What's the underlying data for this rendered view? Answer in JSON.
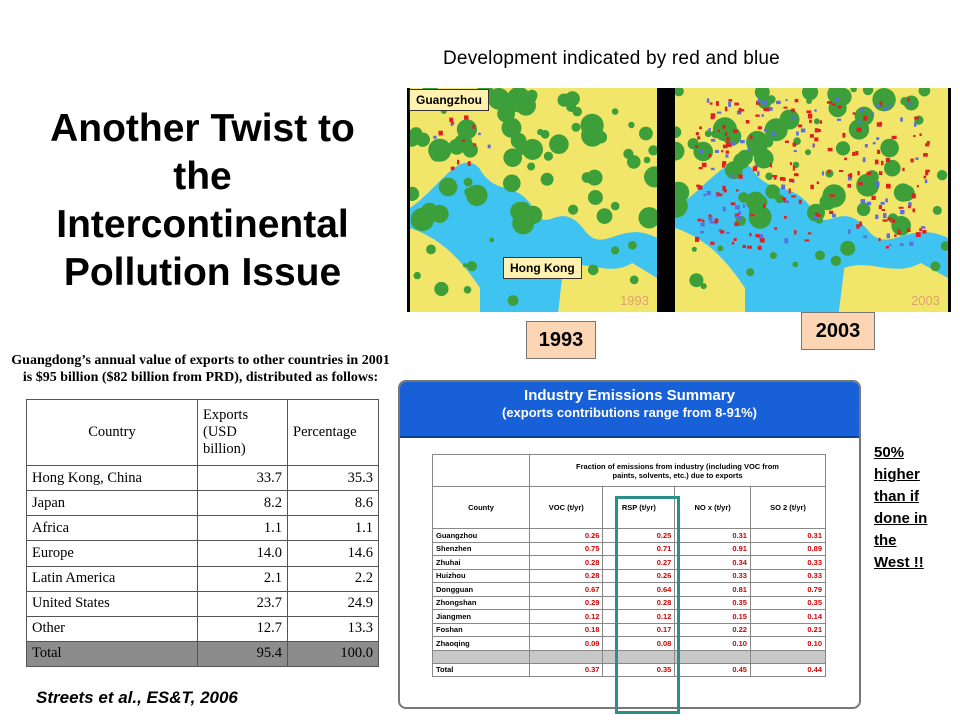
{
  "slide": {
    "title_lines": [
      "Another Twist to",
      "the",
      "Intercontinental",
      "Pollution Issue"
    ],
    "development_caption": "Development indicated by red and blue",
    "citation": "Streets et al., ES&T, 2006",
    "side_note_lines": [
      "50%",
      "higher",
      "than if",
      "done in",
      "the",
      "West !!"
    ]
  },
  "maps": {
    "label_guangzhou": "Guangzhou",
    "label_hongkong": "Hong Kong",
    "panel_year_left": "1993",
    "panel_year_right": "2003",
    "box_year_left": "1993",
    "box_year_right": "2003",
    "colors": {
      "water": "#3fc3f0",
      "land": "#f2e66a",
      "vegetation": "#3c9f3a",
      "urban_red": "#e02020",
      "urban_blue": "#5a6fe0"
    }
  },
  "exports": {
    "heading_line1": "Guangdong’s annual value of exports to other countries in 2001",
    "heading_line2": "is $95 billion ($82 billion from PRD), distributed as follows:",
    "col_country": "Country",
    "col_exports_lines": [
      "Exports",
      "(USD",
      "billion)"
    ],
    "col_percentage": "Percentage",
    "rows": [
      {
        "country": "Hong Kong, China",
        "exports": "33.7",
        "percentage": "35.3"
      },
      {
        "country": "Japan",
        "exports": "8.2",
        "percentage": "8.6"
      },
      {
        "country": "Africa",
        "exports": "1.1",
        "percentage": "1.1"
      },
      {
        "country": "Europe",
        "exports": "14.0",
        "percentage": "14.6"
      },
      {
        "country": "Latin America",
        "exports": "2.1",
        "percentage": "2.2"
      },
      {
        "country": "United States",
        "exports": "23.7",
        "percentage": "24.9"
      },
      {
        "country": "Other",
        "exports": "12.7",
        "percentage": "13.3"
      },
      {
        "country": "Total",
        "exports": "95.4",
        "percentage": "100.0"
      }
    ]
  },
  "emissions": {
    "title": "Industry Emissions Summary",
    "subtitle": "(exports contributions range from 8-91%)",
    "group_header_line1": "Fraction of emissions from industry (including VOC from",
    "group_header_line2": "paints, solvents, etc.) due to exports",
    "col_county": "County",
    "col_voc": "VOC (t/yr)",
    "col_rsp": "RSP (t/yr)",
    "col_nox": "NO x (t/yr)",
    "col_so2": "SO 2 (t/yr)",
    "rows": [
      {
        "county": "Guangzhou",
        "voc": "0.26",
        "rsp": "0.25",
        "nox": "0.31",
        "so2": "0.31"
      },
      {
        "county": "Shenzhen",
        "voc": "0.75",
        "rsp": "0.71",
        "nox": "0.91",
        "so2": "0.89"
      },
      {
        "county": "Zhuhai",
        "voc": "0.28",
        "rsp": "0.27",
        "nox": "0.34",
        "so2": "0.33"
      },
      {
        "county": "Huizhou",
        "voc": "0.28",
        "rsp": "0.26",
        "nox": "0.33",
        "so2": "0.33"
      },
      {
        "county": "Dongguan",
        "voc": "0.67",
        "rsp": "0.64",
        "nox": "0.81",
        "so2": "0.79"
      },
      {
        "county": "Zhongshan",
        "voc": "0.29",
        "rsp": "0.28",
        "nox": "0.35",
        "so2": "0.35"
      },
      {
        "county": "Jiangmen",
        "voc": "0.12",
        "rsp": "0.12",
        "nox": "0.15",
        "so2": "0.14"
      },
      {
        "county": "Foshan",
        "voc": "0.18",
        "rsp": "0.17",
        "nox": "0.22",
        "so2": "0.21"
      },
      {
        "county": "Zhaoqing",
        "voc": "0.09",
        "rsp": "0.08",
        "nox": "0.10",
        "so2": "0.10"
      }
    ],
    "total": {
      "county": "Total",
      "voc": "0.37",
      "rsp": "0.35",
      "nox": "0.45",
      "so2": "0.44"
    }
  }
}
